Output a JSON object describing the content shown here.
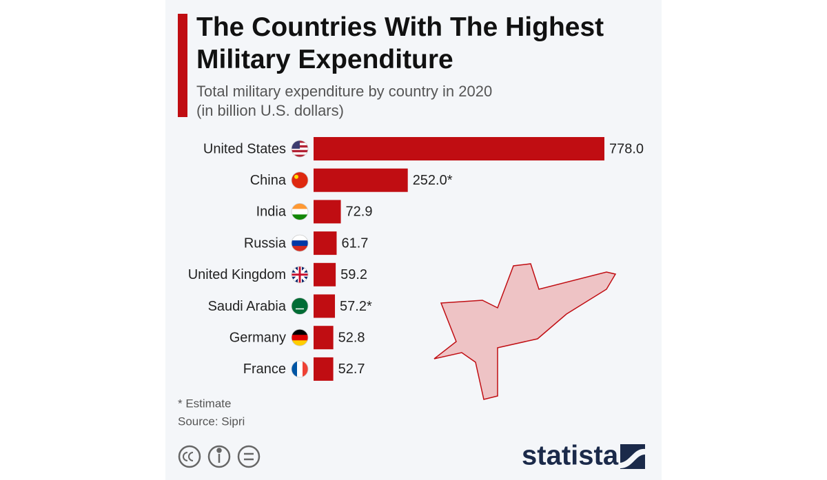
{
  "title": "The Countries With The Highest Military Expenditure",
  "subtitle": "Total military expenditure by country in 2020",
  "unit_note": "(in billion U.S. dollars)",
  "chart_data": {
    "type": "bar",
    "orientation": "horizontal",
    "color": "#c00d12",
    "categories": [
      "United States",
      "China",
      "India",
      "Russia",
      "United Kingdom",
      "Saudi Arabia",
      "Germany",
      "France"
    ],
    "values": [
      778.0,
      252.0,
      72.9,
      61.7,
      59.2,
      57.2,
      52.8,
      52.7
    ],
    "value_labels": [
      "778.0",
      "252.0*",
      "72.9",
      "61.7",
      "59.2",
      "57.2*",
      "52.8",
      "52.7"
    ]
  },
  "footnote": "* Estimate",
  "source": "Source: Sipri",
  "brand": "statista"
}
